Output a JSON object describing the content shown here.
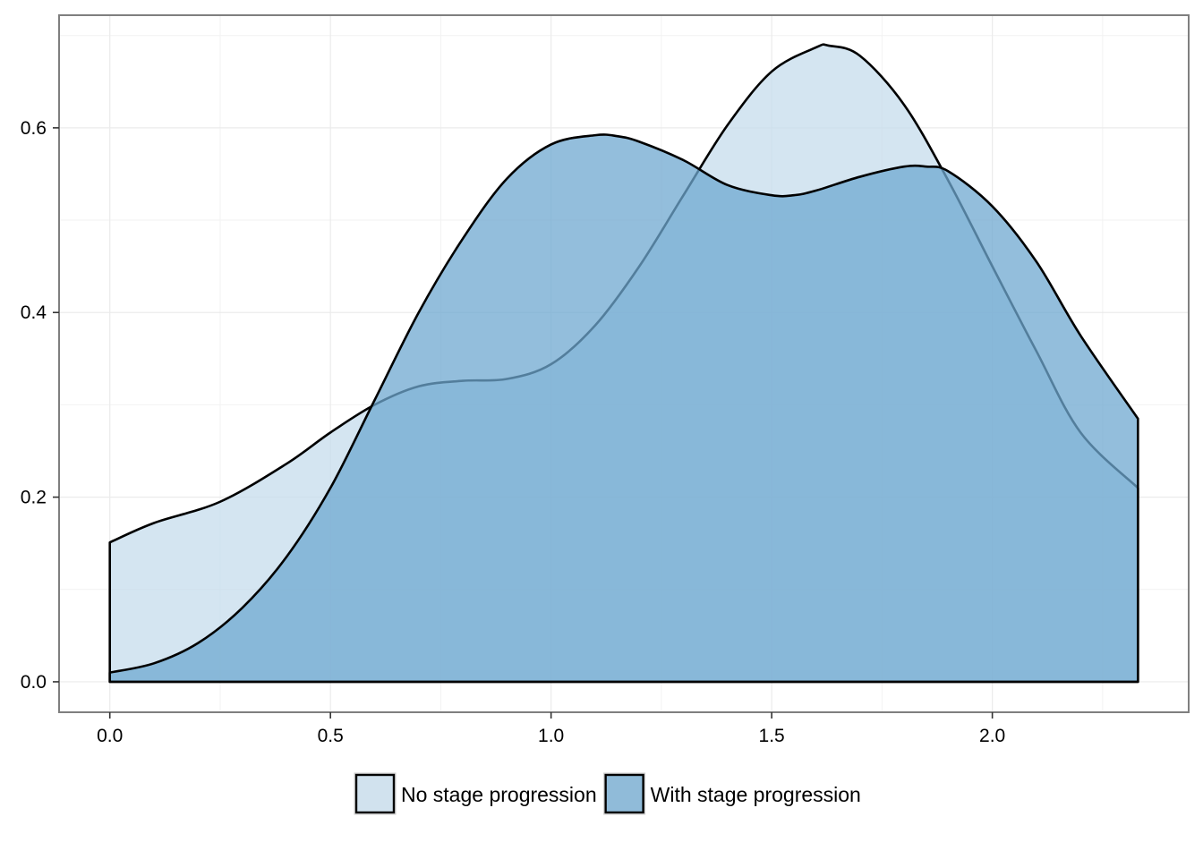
{
  "chart_data": {
    "type": "area",
    "title": "",
    "xlabel": "",
    "ylabel": "",
    "xlim": [
      -0.115,
      2.445
    ],
    "ylim": [
      -0.033,
      0.722
    ],
    "x_ticks": [
      0.0,
      0.5,
      1.0,
      1.5,
      2.0
    ],
    "x_tick_labels": [
      "0.0",
      "0.5",
      "1.0",
      "1.5",
      "2.0"
    ],
    "y_ticks": [
      0.0,
      0.2,
      0.4,
      0.6
    ],
    "y_tick_labels": [
      "0.0",
      "0.2",
      "0.4",
      "0.6"
    ],
    "grid": true,
    "legend_position": "bottom",
    "series": [
      {
        "name": "No stage progression",
        "color": "#c6dcec",
        "x": [
          0.0,
          0.1,
          0.25,
          0.4,
          0.5,
          0.6,
          0.7,
          0.8,
          0.9,
          1.0,
          1.1,
          1.2,
          1.3,
          1.4,
          1.5,
          1.6,
          1.63,
          1.7,
          1.8,
          1.9,
          2.0,
          2.1,
          2.2,
          2.33
        ],
        "y": [
          0.151,
          0.172,
          0.195,
          0.236,
          0.27,
          0.3,
          0.32,
          0.326,
          0.328,
          0.344,
          0.386,
          0.45,
          0.527,
          0.603,
          0.661,
          0.687,
          0.689,
          0.678,
          0.625,
          0.543,
          0.45,
          0.358,
          0.27,
          0.21
        ]
      },
      {
        "name": "With stage progression",
        "color": "#6fa8d0",
        "x": [
          0.0,
          0.1,
          0.2,
          0.3,
          0.4,
          0.5,
          0.6,
          0.7,
          0.8,
          0.9,
          1.0,
          1.1,
          1.15,
          1.2,
          1.3,
          1.4,
          1.5,
          1.55,
          1.6,
          1.7,
          1.8,
          1.85,
          1.9,
          2.0,
          2.1,
          2.2,
          2.33
        ],
        "y": [
          0.01,
          0.02,
          0.042,
          0.08,
          0.135,
          0.21,
          0.305,
          0.4,
          0.48,
          0.545,
          0.582,
          0.592,
          0.591,
          0.585,
          0.565,
          0.538,
          0.527,
          0.527,
          0.532,
          0.547,
          0.558,
          0.558,
          0.553,
          0.515,
          0.455,
          0.375,
          0.285
        ]
      }
    ]
  }
}
